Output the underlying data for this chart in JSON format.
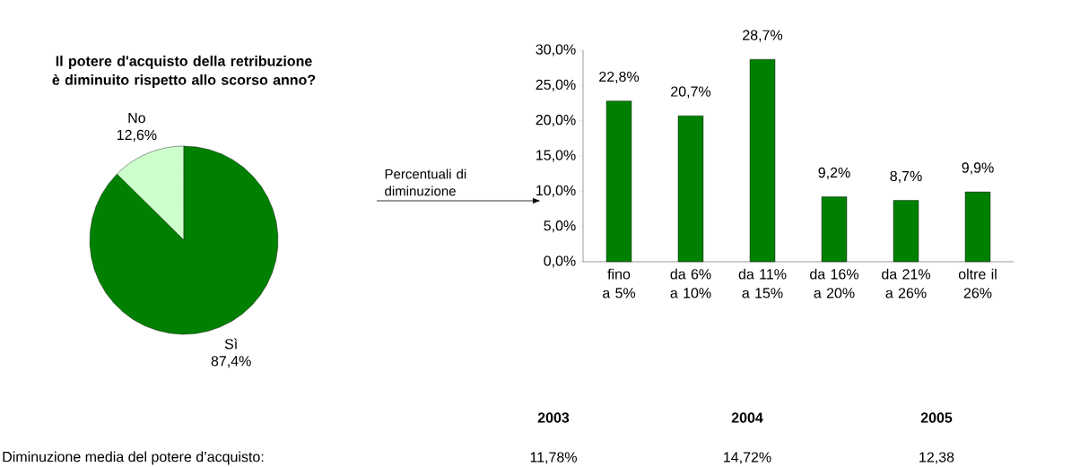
{
  "chart_data": [
    {
      "type": "pie",
      "title": "Il potere d'acquisto della retribuzione è diminuito rispetto allo scorso anno?",
      "categories": [
        "No",
        "Sì"
      ],
      "values": [
        12.6,
        87.4
      ],
      "colors": [
        "#ccffcc",
        "#008000"
      ],
      "value_labels": [
        "12,6%",
        "87,4%"
      ]
    },
    {
      "type": "bar",
      "categories": [
        "fino a 5%",
        "da 6% a 10%",
        "da 11% a 15%",
        "da 16% a 20%",
        "da 21% a 26%",
        "oltre il 26%"
      ],
      "values": [
        22.8,
        20.7,
        28.7,
        9.2,
        8.7,
        9.9
      ],
      "color": "#008000",
      "value_labels": [
        "22,8%",
        "20,7%",
        "28,7%",
        "9,2%",
        "8,7%",
        "9,9%"
      ],
      "ylim": [
        0,
        30
      ],
      "yticks": [
        {
          "value": 0,
          "label": "0,0%"
        },
        {
          "value": 5,
          "label": "5,0%"
        },
        {
          "value": 10,
          "label": "10,0%"
        },
        {
          "value": 15,
          "label": "15,0%"
        },
        {
          "value": 20,
          "label": "20,0%"
        },
        {
          "value": 25,
          "label": "25,0%"
        },
        {
          "value": 30,
          "label": "30,0%"
        }
      ],
      "annotations": [
        "Percentuali di diminuzione"
      ]
    },
    {
      "type": "other",
      "categories": [
        "2003",
        "2004",
        "2005"
      ],
      "value_labels": [
        "11,78%",
        "14,72%",
        "12,38"
      ],
      "annotations": [
        "Diminuzione media del potere d’acquisto:"
      ]
    }
  ]
}
